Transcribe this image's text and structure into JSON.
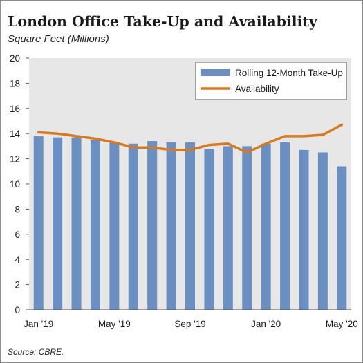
{
  "chart_data": {
    "type": "bar",
    "title": "London Office Take-Up and Availability",
    "subtitle": "Square Feet (Millions)",
    "source": "Source: CBRE.",
    "categories": [
      "Jan '19",
      "Feb '19",
      "Mar '19",
      "Apr '19",
      "May '19",
      "Jun '19",
      "Jul '19",
      "Aug '19",
      "Sep '19",
      "Oct '19",
      "Nov '19",
      "Dec '19",
      "Jan '20",
      "Feb '20",
      "Mar '20",
      "Apr '20",
      "May '20"
    ],
    "x_tick_labels": [
      "Jan '19",
      "May '19",
      "Sep '19",
      "Jan '20",
      "May '20"
    ],
    "x_tick_indices": [
      0,
      4,
      8,
      12,
      16
    ],
    "series": [
      {
        "name": "Rolling 12-Month Take-Up",
        "type": "bar",
        "color": "#6a8fc0",
        "values": [
          13.8,
          13.7,
          13.7,
          13.5,
          13.3,
          13.2,
          13.4,
          13.3,
          13.3,
          12.8,
          13.0,
          13.0,
          13.2,
          13.3,
          12.7,
          12.5,
          11.4
        ]
      },
      {
        "name": "Availability",
        "type": "line",
        "color": "#d57a1e",
        "values": [
          14.1,
          14.0,
          13.8,
          13.6,
          13.3,
          12.9,
          12.9,
          12.7,
          12.7,
          13.1,
          13.2,
          12.5,
          13.2,
          13.8,
          13.8,
          13.9,
          14.7
        ]
      }
    ],
    "ylim": [
      0,
      20
    ],
    "y_ticks": [
      0,
      2,
      4,
      6,
      8,
      10,
      12,
      14,
      16,
      18,
      20
    ],
    "grid": false,
    "plot_background": "#e7e7e7",
    "legend_position": "top-right"
  }
}
